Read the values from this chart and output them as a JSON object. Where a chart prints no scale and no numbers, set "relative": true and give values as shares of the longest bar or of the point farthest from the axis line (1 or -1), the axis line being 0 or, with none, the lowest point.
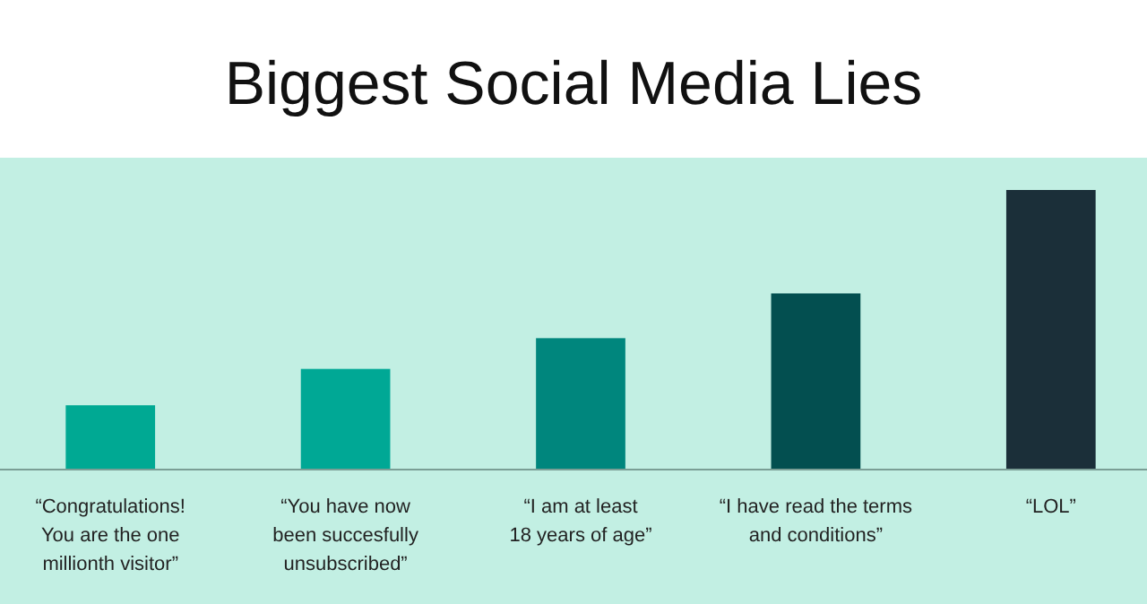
{
  "chart_data": {
    "type": "bar",
    "title": "Biggest Social Media Lies",
    "relative": true,
    "categories": [
      "“Congratulations!\nYou are the one\nmillionth visitor”",
      "“You have now\nbeen succesfully\nunsubscribed”",
      "“I am at least\n18 years of age”",
      "“I have read the terms\nand conditions”",
      "“LOL”"
    ],
    "values": [
      0.23,
      0.36,
      0.47,
      0.63,
      1
    ],
    "colors": [
      "#00a993",
      "#00a895",
      "#00867d",
      "#034f50",
      "#1b2f39"
    ],
    "grid": false
  }
}
